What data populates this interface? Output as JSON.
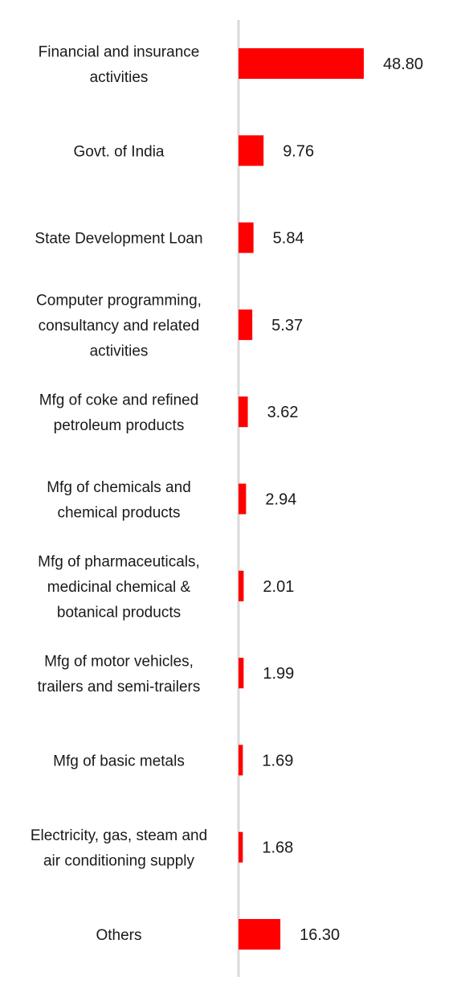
{
  "chart_data": {
    "type": "bar",
    "orientation": "horizontal",
    "categories": [
      [
        "Financial and insurance",
        "activities"
      ],
      [
        "Govt. of India"
      ],
      [
        "State Development Loan"
      ],
      [
        "Computer programming,",
        "consultancy and related",
        "activities"
      ],
      [
        "Mfg of coke and refined",
        "petroleum products"
      ],
      [
        "Mfg of chemicals and",
        "chemical products"
      ],
      [
        "Mfg of pharmaceuticals,",
        "medicinal chemical &",
        "botanical products"
      ],
      [
        "Mfg of motor vehicles,",
        "trailers and semi-trailers"
      ],
      [
        "Mfg of basic metals"
      ],
      [
        "Electricity, gas, steam and",
        "air conditioning supply"
      ],
      [
        "Others"
      ]
    ],
    "values": [
      48.8,
      9.76,
      5.84,
      5.37,
      3.62,
      2.94,
      2.01,
      1.99,
      1.69,
      1.68,
      16.3
    ],
    "value_labels": [
      "48.80",
      "9.76",
      "5.84",
      "5.37",
      "3.62",
      "2.94",
      "2.01",
      "1.99",
      "1.69",
      "1.68",
      "16.30"
    ],
    "bar_color": "#ff0000",
    "axis_color": "#d9d9d9",
    "xlim": [
      0,
      50
    ],
    "grid": false,
    "legend": "none"
  }
}
